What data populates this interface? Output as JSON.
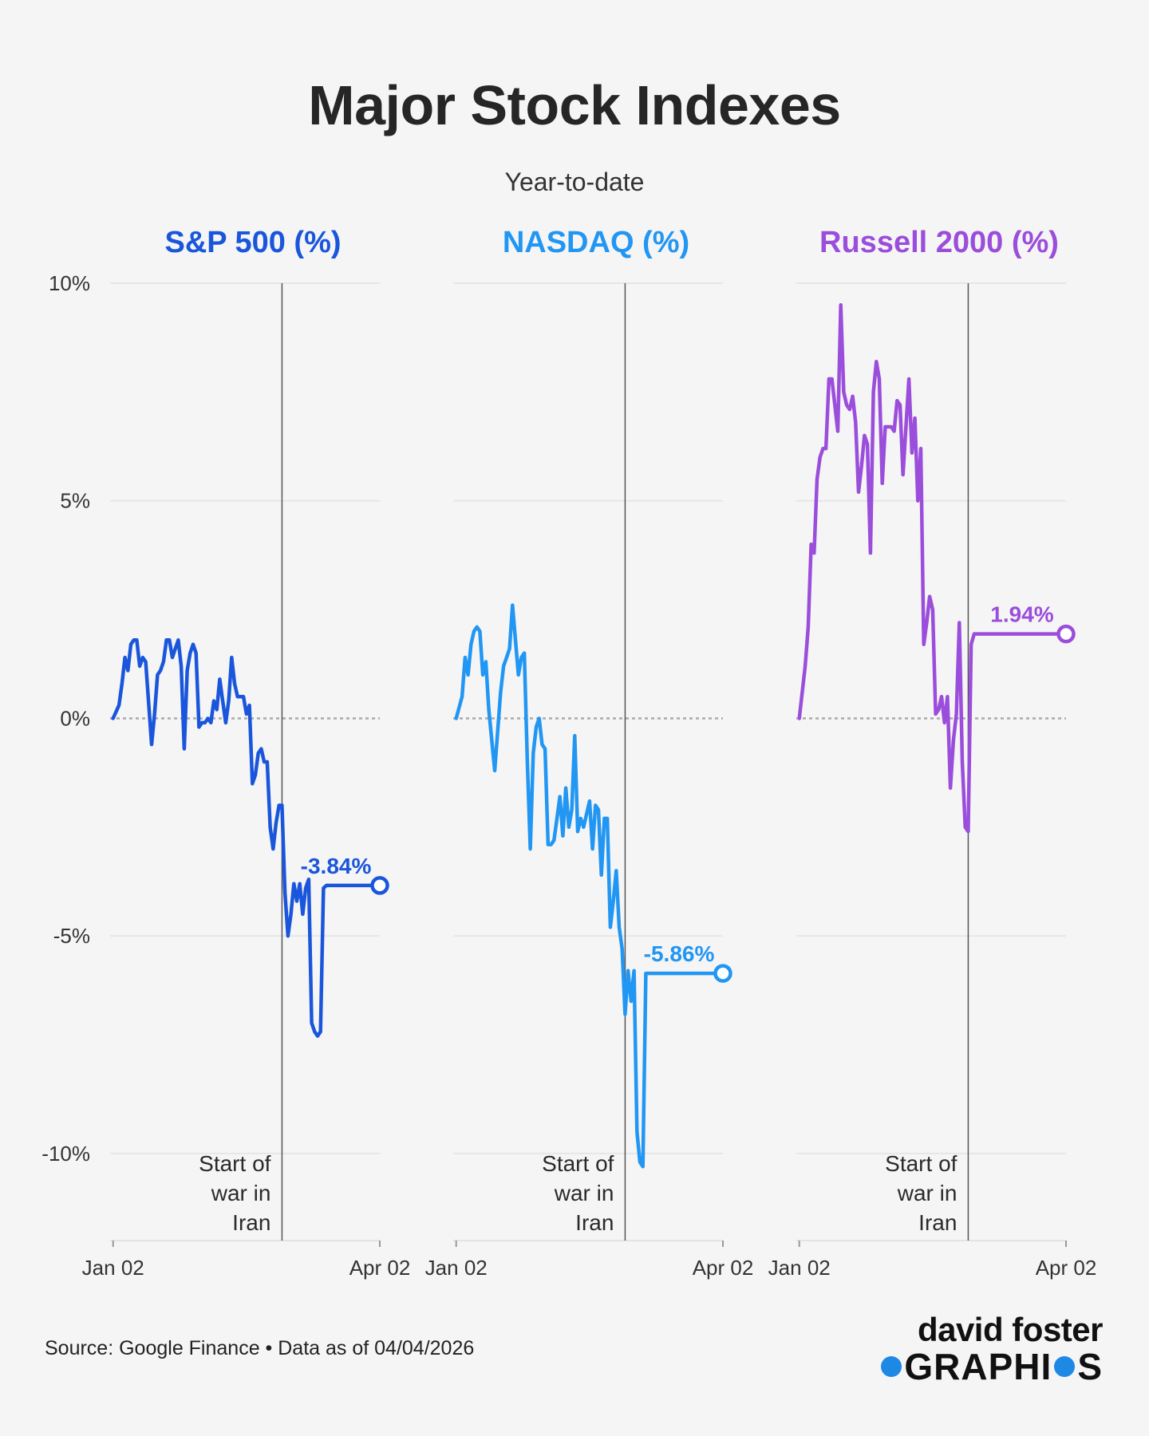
{
  "title": "Major Stock Indexes",
  "subtitle": "Year-to-date",
  "source": "Source: Google Finance • Data as of 04/04/2026",
  "branding": {
    "line1": "david foster",
    "line2a": "GRAPHI",
    "line2b": "S",
    "dot_color": "#1e88e5"
  },
  "colors": {
    "sp500": "#1a56db",
    "nasdaq": "#2196f3",
    "russell": "#9b4ddb",
    "zero_line": "#aaaaaa",
    "gridline": "#e6e6e6",
    "event_line": "#555555"
  },
  "chart_data": [
    {
      "type": "line",
      "title": "S&P 500 (%)",
      "color": "#1a56db",
      "ylim": [
        -12,
        10
      ],
      "y_ticks": [
        10,
        5,
        0,
        -5,
        -10
      ],
      "y_tick_labels": [
        "10%",
        "5%",
        "0%",
        "-5%",
        "-10%"
      ],
      "x_tick_labels": [
        "Jan 02",
        "Apr 02"
      ],
      "x_range_days": [
        -1,
        90
      ],
      "event": {
        "day": 57,
        "label": [
          "Start of",
          "war in",
          "Iran"
        ]
      },
      "end_label": "-3.84%",
      "series": [
        {
          "name": "S&P 500",
          "x": [
            0,
            2,
            3,
            4,
            5,
            6,
            7,
            8,
            9,
            10,
            11,
            13,
            14,
            15,
            16,
            17,
            18,
            19,
            20,
            21,
            22,
            23,
            24,
            25,
            26,
            27,
            28,
            29,
            30,
            31,
            32,
            33,
            34,
            35,
            36,
            37,
            38,
            39,
            40,
            41,
            42,
            43,
            44,
            45,
            46,
            47,
            48,
            49,
            50,
            51,
            52,
            53,
            54,
            55,
            56,
            57,
            58,
            59,
            60,
            61,
            62,
            63,
            64,
            65,
            66,
            67,
            68,
            69,
            70,
            71,
            72,
            73,
            74,
            75,
            76,
            77,
            78,
            79,
            80,
            81,
            82,
            83,
            84,
            85,
            86,
            87,
            88,
            89,
            90
          ],
          "y": [
            0,
            0.3,
            0.8,
            1.4,
            1.1,
            1.7,
            1.8,
            1.8,
            1.2,
            1.4,
            1.3,
            -0.6,
            0.1,
            1.0,
            1.1,
            1.3,
            1.8,
            1.8,
            1.4,
            1.6,
            1.8,
            1.2,
            -0.7,
            1.1,
            1.5,
            1.7,
            1.5,
            -0.2,
            -0.1,
            -0.1,
            0.0,
            -0.1,
            0.4,
            0.2,
            0.9,
            0.4,
            -0.1,
            0.4,
            1.4,
            0.8,
            0.5,
            0.5,
            0.5,
            0.1,
            0.3,
            -1.5,
            -1.3,
            -0.8,
            -0.7,
            -1.0,
            -1.0,
            -2.5,
            -3.0,
            -2.4,
            -2.0,
            -2.0,
            -4.0,
            -5.0,
            -4.5,
            -3.8,
            -4.2,
            -3.8,
            -4.5,
            -3.9,
            -3.7,
            -7.0,
            -7.2,
            -7.3,
            -7.2,
            -3.9,
            -3.84,
            -3.84,
            -3.84,
            -3.84,
            -3.84,
            -3.84,
            -3.84,
            -3.84,
            -3.84,
            -3.84,
            -3.84,
            -3.84,
            -3.84,
            -3.84,
            -3.84,
            -3.84,
            -3.84,
            -3.84,
            -3.84
          ]
        }
      ]
    },
    {
      "type": "line",
      "title": "NASDAQ (%)",
      "color": "#2196f3",
      "ylim": [
        -12,
        10
      ],
      "y_ticks": [
        10,
        5,
        0,
        -5,
        -10
      ],
      "x_tick_labels": [
        "Jan 02",
        "Apr 02"
      ],
      "x_range_days": [
        -1,
        90
      ],
      "event": {
        "day": 57,
        "label": [
          "Start of",
          "war in",
          "Iran"
        ]
      },
      "end_label": "-5.86%",
      "series": [
        {
          "name": "NASDAQ",
          "x": [
            0,
            2,
            3,
            4,
            5,
            6,
            7,
            8,
            9,
            10,
            11,
            13,
            14,
            15,
            16,
            17,
            18,
            19,
            20,
            21,
            22,
            23,
            24,
            25,
            26,
            27,
            28,
            29,
            30,
            31,
            32,
            33,
            34,
            35,
            36,
            37,
            38,
            39,
            40,
            41,
            42,
            43,
            44,
            45,
            46,
            47,
            48,
            49,
            50,
            51,
            52,
            53,
            54,
            55,
            56,
            57,
            58,
            59,
            60,
            61,
            62,
            63,
            64,
            65,
            66,
            67,
            68,
            69,
            70,
            71,
            72,
            73,
            74,
            75,
            76,
            77,
            78,
            79,
            80,
            81,
            82,
            83,
            84,
            85,
            86,
            87,
            88,
            89,
            90
          ],
          "y": [
            0,
            0.5,
            1.4,
            1.0,
            1.7,
            2.0,
            2.1,
            2.0,
            1.0,
            1.3,
            0.2,
            -1.2,
            -0.3,
            0.6,
            1.2,
            1.4,
            1.6,
            2.6,
            1.8,
            1.0,
            1.4,
            1.5,
            -1.0,
            -3.0,
            -0.8,
            -0.2,
            0.0,
            -0.6,
            -0.7,
            -2.9,
            -2.9,
            -2.8,
            -2.3,
            -1.8,
            -2.7,
            -1.6,
            -2.5,
            -2.1,
            -0.4,
            -2.6,
            -2.3,
            -2.5,
            -2.2,
            -1.9,
            -3.0,
            -2.0,
            -2.1,
            -3.6,
            -2.3,
            -2.3,
            -4.8,
            -4.2,
            -3.5,
            -4.8,
            -5.3,
            -6.8,
            -5.8,
            -6.5,
            -5.8,
            -9.5,
            -10.2,
            -10.3,
            -5.86,
            -5.86,
            -5.86,
            -5.86,
            -5.86,
            -5.86,
            -5.86,
            -5.86,
            -5.86,
            -5.86,
            -5.86,
            -5.86,
            -5.86,
            -5.86,
            -5.86,
            -5.86,
            -5.86,
            -5.86,
            -5.86,
            -5.86,
            -5.86,
            -5.86,
            -5.86,
            -5.86,
            -5.86,
            -5.86,
            -5.86
          ]
        }
      ]
    },
    {
      "type": "line",
      "title": "Russell 2000 (%)",
      "color": "#9b4ddb",
      "ylim": [
        -12,
        10
      ],
      "y_ticks": [
        10,
        5,
        0,
        -5,
        -10
      ],
      "x_tick_labels": [
        "Jan 02",
        "Apr 02"
      ],
      "x_range_days": [
        -1,
        90
      ],
      "event": {
        "day": 57,
        "label": [
          "Start of",
          "war in",
          "Iran"
        ]
      },
      "end_label": "1.94%",
      "series": [
        {
          "name": "Russell 2000",
          "x": [
            0,
            2,
            3,
            4,
            5,
            6,
            7,
            8,
            9,
            10,
            11,
            13,
            14,
            15,
            16,
            17,
            18,
            19,
            20,
            21,
            22,
            23,
            24,
            25,
            26,
            27,
            28,
            29,
            30,
            31,
            32,
            33,
            34,
            35,
            36,
            37,
            38,
            39,
            40,
            41,
            42,
            43,
            44,
            45,
            46,
            47,
            48,
            49,
            50,
            51,
            52,
            53,
            54,
            55,
            56,
            57,
            58,
            59,
            60,
            61,
            62,
            63,
            64,
            65,
            66,
            67,
            68,
            69,
            70,
            71,
            72,
            73,
            74,
            75,
            76,
            77,
            78,
            79,
            80,
            81,
            82,
            83,
            84,
            85,
            86,
            87,
            88,
            89,
            90
          ],
          "y": [
            0,
            1.2,
            2.1,
            4.0,
            3.8,
            5.5,
            6.0,
            6.2,
            6.2,
            7.8,
            7.8,
            6.6,
            9.5,
            7.5,
            7.2,
            7.1,
            7.4,
            6.8,
            5.2,
            5.8,
            6.5,
            6.3,
            3.8,
            7.5,
            8.2,
            7.8,
            5.4,
            6.7,
            6.7,
            6.7,
            6.6,
            7.3,
            7.2,
            5.6,
            6.7,
            7.8,
            6.1,
            6.9,
            5.0,
            6.2,
            1.7,
            2.2,
            2.8,
            2.5,
            0.1,
            0.2,
            0.5,
            -0.1,
            0.5,
            -1.6,
            -0.5,
            0.1,
            2.2,
            -1.0,
            -2.5,
            -2.6,
            1.7,
            1.94,
            1.94,
            1.94,
            1.94,
            1.94,
            1.94,
            1.94,
            1.94,
            1.94,
            1.94,
            1.94,
            1.94,
            1.94,
            1.94,
            1.94,
            1.94,
            1.94,
            1.94,
            1.94,
            1.94,
            1.94,
            1.94,
            1.94,
            1.94,
            1.94,
            1.94,
            1.94,
            1.94,
            1.94,
            1.94,
            1.94,
            1.94
          ]
        }
      ]
    }
  ]
}
